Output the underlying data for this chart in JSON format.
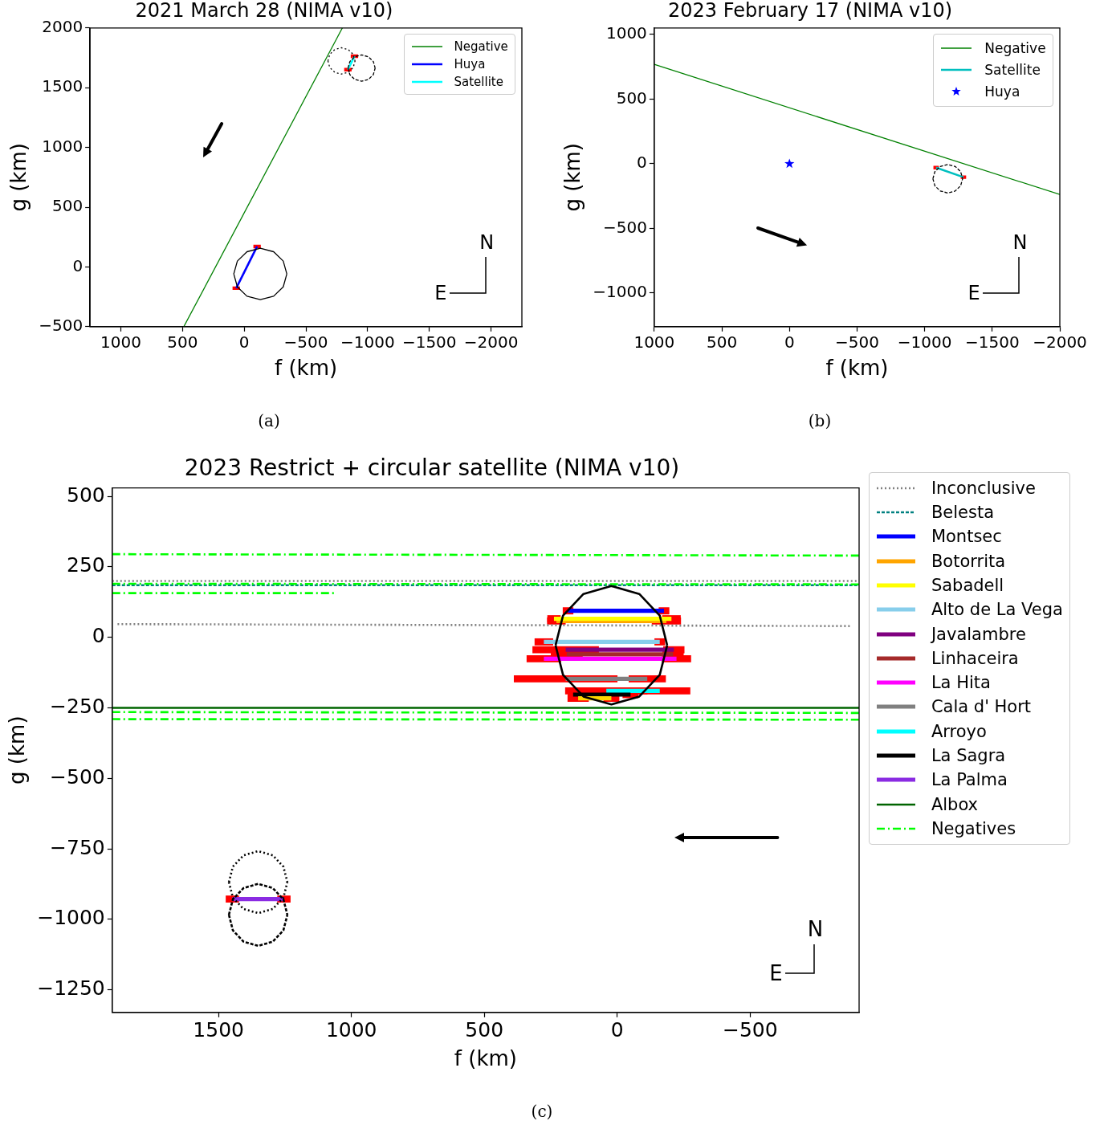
{
  "chart_data": [
    {
      "type": "line",
      "title": "2021 March 28 (NIMA v10)",
      "xlabel": "f (km)",
      "ylabel": "g (km)",
      "annotations": [
        "(a)",
        "N",
        "E"
      ],
      "legend": "top right",
      "xlim": [
        1250,
        -2250
      ],
      "ylim": [
        -500,
        2000
      ],
      "xticks": [
        1000,
        500,
        0,
        {
          "value": -500,
          "label": "−500"
        },
        {
          "value": -1000,
          "label": "−1000"
        },
        {
          "value": -1500,
          "label": "−1500"
        },
        {
          "value": -2000,
          "label": "−2000"
        }
      ],
      "yticks": [
        {
          "value": -500,
          "label": "−500"
        },
        0,
        500,
        1000,
        1500,
        2000
      ],
      "series": [
        {
          "name": "Negative",
          "color": "#008000",
          "x": [
            490,
            -795
          ],
          "values": [
            -500,
            2000
          ]
        },
        {
          "name": "Huya",
          "color": "#0000ff",
          "x": [
            65,
            -104
          ],
          "values": [
            -178,
            171
          ],
          "xerrors": [
            30,
            30
          ]
        },
        {
          "name": "Satellite",
          "color": "#00ffff",
          "x": [
            -840,
            -893
          ],
          "values": [
            1651,
            1763
          ],
          "xerrors": [
            30,
            30
          ]
        },
        {
          "color": "#000000",
          "line_style": "solid",
          "x": [
            85,
            56,
            -22,
            -130,
            -238,
            -316,
            -345
          ],
          "values": [
            -59,
            49,
            127,
            156,
            127,
            49,
            -59
          ]
        },
        {
          "color": "#000000",
          "line_style": "solid",
          "x": [
            85,
            56,
            -22,
            -130,
            -238,
            -316,
            -345
          ],
          "values": [
            -59,
            -167,
            -245,
            -274,
            -245,
            -167,
            -59
          ]
        },
        {
          "color": "#000000",
          "line_style": "dotted",
          "x": [
            -678,
            -693,
            -733,
            -788,
            -843,
            -883,
            -898
          ],
          "values": [
            1724,
            1779,
            1819,
            1834,
            1819,
            1779,
            1724
          ]
        },
        {
          "color": "#000000",
          "line_style": "dotted",
          "x": [
            -678,
            -693,
            -733,
            -788,
            -843,
            -883,
            -898
          ],
          "values": [
            1724,
            1669,
            1629,
            1614,
            1629,
            1669,
            1724
          ]
        },
        {
          "color": "#000000",
          "line_style": "dashed",
          "x": [
            -841,
            -856,
            -896,
            -951,
            -1006,
            -1046,
            -1061
          ],
          "values": [
            1664,
            1719,
            1759,
            1774,
            1759,
            1719,
            1664
          ]
        },
        {
          "color": "#000000",
          "line_style": "dashed",
          "x": [
            -841,
            -856,
            -896,
            -951,
            -1006,
            -1046,
            -1061
          ],
          "values": [
            1664,
            1609,
            1569,
            1554,
            1569,
            1609,
            1664
          ]
        }
      ]
    },
    {
      "type": "line",
      "title": "2023 February 17 (NIMA v10)",
      "xlabel": "f (km)",
      "ylabel": "g (km)",
      "annotations": [
        "(b)",
        "N",
        "E"
      ],
      "legend": "top right",
      "xlim": [
        1000,
        -2000
      ],
      "ylim": [
        -1260,
        1050
      ],
      "xticks": [
        1000,
        500,
        0,
        {
          "value": -500,
          "label": "−500"
        },
        {
          "value": -1000,
          "label": "−1000"
        },
        {
          "value": -1500,
          "label": "−1500"
        },
        {
          "value": -2000,
          "label": "−2000"
        }
      ],
      "yticks": [
        {
          "value": -1000,
          "label": "−1000"
        },
        {
          "value": -500,
          "label": "−500"
        },
        0,
        500,
        1000
      ],
      "series": [
        {
          "name": "Negative",
          "color": "#008000",
          "x": [
            1000,
            -2000
          ],
          "values": [
            768,
            -238
          ]
        },
        {
          "name": "Satellite",
          "color": "#00bfbf",
          "x": [
            -1085,
            -1287
          ],
          "values": [
            -30,
            -104
          ],
          "xerrors": [
            20,
            20
          ]
        },
        {
          "name": "Huya",
          "type": "scatter",
          "marker": "star",
          "color": "#0000ff",
          "x": [
            0
          ],
          "values": [
            0
          ]
        },
        {
          "color": "#000000",
          "line_style": "dashed",
          "x": [
            -1061,
            -1076,
            -1116,
            -1171,
            -1226,
            -1266,
            -1281
          ],
          "values": [
            -116,
            -61,
            -21,
            -6,
            -21,
            -61,
            -116
          ]
        },
        {
          "color": "#000000",
          "line_style": "dashed",
          "x": [
            -1061,
            -1076,
            -1116,
            -1171,
            -1226,
            -1266,
            -1281
          ],
          "values": [
            -116,
            -171,
            -211,
            -226,
            -211,
            -171,
            -116
          ]
        }
      ]
    },
    {
      "type": "line",
      "title": "2023 Restrict + circular satellite (NIMA v10)",
      "xlabel": "f (km)",
      "ylabel": "g (km)",
      "annotations": [
        "(c)",
        "N",
        "E"
      ],
      "legend": "right",
      "xlim": [
        1900,
        -910
      ],
      "ylim": [
        -1330,
        530
      ],
      "xticks": [
        1500,
        1000,
        500,
        0,
        {
          "value": -500,
          "label": "−500"
        }
      ],
      "yticks": [
        {
          "value": -1250,
          "label": "−1250"
        },
        {
          "value": -1000,
          "label": "−1000"
        },
        {
          "value": -750,
          "label": "−750"
        },
        {
          "value": -500,
          "label": "−500"
        },
        {
          "value": -250,
          "label": "−250"
        },
        0,
        250,
        500
      ],
      "series": [
        {
          "name": "Inconclusive",
          "color": "#808080",
          "line_style": "dotted",
          "x": [
            1880,
            -880
          ],
          "values": [
            47,
            40
          ]
        },
        {
          "name": "Belesta",
          "color": "#008080",
          "line_style": "dashed",
          "x": [
            1900,
            -910
          ],
          "values": [
            185,
            185
          ]
        },
        {
          "name": "Montsec",
          "color": "#0000ff",
          "x": [
            185,
            -176
          ],
          "values": [
            94,
            94
          ],
          "xerrors": [
            20,
            20
          ]
        },
        {
          "name": "Botorrita",
          "color": "#ffa500",
          "x": [
            229,
            -185
          ],
          "values": [
            58,
            58
          ],
          "xerrors": [
            35,
            55
          ]
        },
        {
          "name": "Sabadell",
          "color": "#ffff00",
          "x": [
            238,
            -204
          ],
          "values": [
            66,
            66
          ],
          "xerrors": [
            25,
            35
          ]
        },
        {
          "name": "Alto de La Vega",
          "color": "#87ceeb",
          "x": [
            276,
            -160
          ],
          "values": [
            -16,
            -16
          ],
          "xerrors": [
            35,
            20
          ]
        },
        {
          "name": "Javalambre",
          "color": "#800080",
          "x": [
            194,
            -213
          ],
          "values": [
            -44,
            -44
          ],
          "xerrors": [
            125,
            40
          ]
        },
        {
          "name": "Linhaceira",
          "color": "#a52a2a",
          "x": [
            190,
            -210
          ],
          "values": [
            -60,
            -60
          ],
          "xerrors": [
            60,
            40
          ]
        },
        {
          "name": "La Hita",
          "color": "#ff00ff",
          "x": [
            276,
            -223
          ],
          "values": [
            -76,
            -76
          ],
          "xerrors": [
            65,
            55
          ]
        },
        {
          "name": "Cala d' Hort",
          "color": "#808080",
          "x": [
            194,
            -113
          ],
          "values": [
            -147,
            -147
          ],
          "xerrors": [
            195,
            70
          ]
        },
        {
          "name": "Arroyo",
          "color": "#00ffff",
          "x": [
            41,
            -160
          ],
          "values": [
            -190,
            -190
          ],
          "xerrors": [
            155,
            115
          ]
        },
        {
          "name": "La Sagra",
          "color": "#000000",
          "x": [
            166,
            -50
          ],
          "values": [
            -203,
            -203
          ],
          "xerrors": [
            20,
            30
          ]
        },
        {
          "color": "#ffd700",
          "x": [
            147,
            22
          ],
          "values": [
            -216,
            -216
          ],
          "xerrors": [
            40,
            30
          ]
        },
        {
          "name": "La Palma",
          "color": "#8a2be2",
          "x": [
            1448,
            1254
          ],
          "values": [
            -928,
            -928
          ],
          "xerrors": [
            25,
            25
          ]
        },
        {
          "name": "Albox",
          "color": "#006400",
          "x": [
            1900,
            -910
          ],
          "values": [
            -250,
            -250
          ]
        },
        {
          "name": "Negatives",
          "color": "#00ff00",
          "line_style": "dashdot",
          "x": [
            1900,
            -910
          ],
          "values": [
            295,
            290
          ]
        },
        {
          "color": "#00ff00",
          "line_style": "dashdot",
          "x": [
            1900,
            -910
          ],
          "values": [
            190,
            188
          ]
        },
        {
          "color": "#00ff00",
          "line_style": "dashdot",
          "x": [
            1900,
            1060
          ],
          "values": [
            157,
            157
          ]
        },
        {
          "color": "#00ff00",
          "line_style": "dashdot",
          "x": [
            1900,
            -910
          ],
          "values": [
            -265,
            -268
          ]
        },
        {
          "color": "#00ff00",
          "line_style": "dashdot",
          "x": [
            1900,
            -910
          ],
          "values": [
            -290,
            -292
          ]
        },
        {
          "color": "#808080",
          "line_style": "dotted",
          "x": [
            1900,
            -910
          ],
          "values": [
            200,
            200
          ]
        },
        {
          "color": "#000000",
          "line_style": "solid",
          "x": [
            232,
            204,
            127,
            22,
            -83,
            -160,
            -188
          ],
          "values": [
            -28,
            77,
            154,
            182,
            154,
            77,
            -28
          ]
        },
        {
          "color": "#000000",
          "line_style": "solid",
          "x": [
            232,
            204,
            127,
            22,
            -83,
            -160,
            -188
          ],
          "values": [
            -28,
            -133,
            -210,
            -238,
            -210,
            -133,
            -28
          ]
        },
        {
          "color": "#000000",
          "line_style": "dotted",
          "x": [
            1461,
            1446,
            1406,
            1351,
            1296,
            1256,
            1241
          ],
          "values": [
            -868,
            -813,
            -773,
            -758,
            -773,
            -813,
            -868
          ]
        },
        {
          "color": "#000000",
          "line_style": "dotted",
          "x": [
            1461,
            1446,
            1406,
            1351,
            1296,
            1256,
            1241
          ],
          "values": [
            -868,
            -923,
            -963,
            -978,
            -963,
            -923,
            -868
          ]
        },
        {
          "color": "#000000",
          "line_style": "dashed",
          "x": [
            1461,
            1446,
            1406,
            1351,
            1296,
            1256,
            1241
          ],
          "values": [
            -984,
            -929,
            -889,
            -874,
            -889,
            -929,
            -984
          ]
        },
        {
          "color": "#000000",
          "line_style": "dashed",
          "x": [
            1461,
            1446,
            1406,
            1351,
            1296,
            1256,
            1241
          ],
          "values": [
            -984,
            -1039,
            -1079,
            -1094,
            -1079,
            -1039,
            -984
          ]
        }
      ]
    }
  ]
}
